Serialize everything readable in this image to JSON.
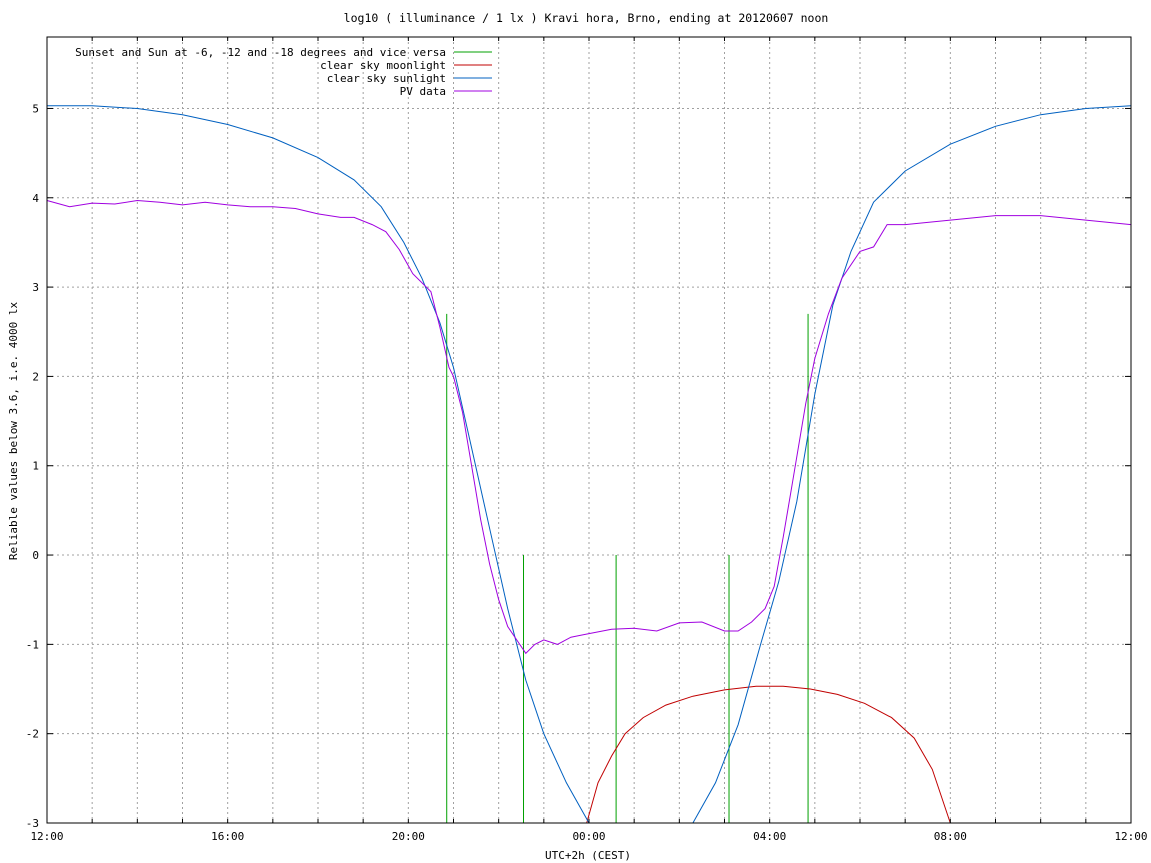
{
  "chart_data": {
    "type": "line",
    "title": "log10 ( illuminance / 1 lx ) Kravi hora, Brno, ending at 20120607 noon",
    "xlabel": "UTC+2h (CEST)",
    "ylabel": "Reliable values below 3.6, i.e. 4000 lx",
    "xlim": [
      0,
      24
    ],
    "ylim": [
      -3,
      5.8
    ],
    "xticks": [
      {
        "x": 0,
        "label": "12:00"
      },
      {
        "x": 4,
        "label": "16:00"
      },
      {
        "x": 8,
        "label": "20:00"
      },
      {
        "x": 12,
        "label": "00:00"
      },
      {
        "x": 16,
        "label": "04:00"
      },
      {
        "x": 20,
        "label": "08:00"
      },
      {
        "x": 24,
        "label": "12:00"
      }
    ],
    "yticks": [
      {
        "y": -3,
        "label": "-3"
      },
      {
        "y": -2,
        "label": "-2"
      },
      {
        "y": -1,
        "label": "-1"
      },
      {
        "y": 0,
        "label": "0"
      },
      {
        "y": 1,
        "label": "1"
      },
      {
        "y": 2,
        "label": "2"
      },
      {
        "y": 3,
        "label": "3"
      },
      {
        "y": 4,
        "label": "4"
      },
      {
        "y": 5,
        "label": "5"
      }
    ],
    "grid": true,
    "legend_position": "top-left",
    "series": [
      {
        "name": "Sunset and Sun at -6, -12 and -18 degrees and vice versa",
        "color": "#00a000",
        "style": "impulses",
        "points": [
          [
            8.85,
            2.7
          ],
          [
            10.55,
            0.0
          ],
          [
            12.6,
            0.0
          ],
          [
            15.1,
            0.0
          ],
          [
            16.85,
            2.7
          ]
        ]
      },
      {
        "name": "clear sky moonlight",
        "color": "#c00000",
        "points": [
          [
            11.95,
            -3.0
          ],
          [
            12.2,
            -2.55
          ],
          [
            12.5,
            -2.25
          ],
          [
            12.8,
            -2.0
          ],
          [
            13.2,
            -1.82
          ],
          [
            13.7,
            -1.68
          ],
          [
            14.3,
            -1.58
          ],
          [
            15.0,
            -1.51
          ],
          [
            15.7,
            -1.47
          ],
          [
            16.3,
            -1.47
          ],
          [
            16.9,
            -1.5
          ],
          [
            17.5,
            -1.56
          ],
          [
            18.1,
            -1.66
          ],
          [
            18.7,
            -1.82
          ],
          [
            19.2,
            -2.05
          ],
          [
            19.6,
            -2.4
          ],
          [
            20.0,
            -3.0
          ]
        ]
      },
      {
        "name": "clear sky sunlight",
        "color": "#0060c0",
        "points": [
          [
            0,
            5.03
          ],
          [
            1,
            5.03
          ],
          [
            2,
            5.0
          ],
          [
            3,
            4.93
          ],
          [
            4,
            4.82
          ],
          [
            5,
            4.67
          ],
          [
            6,
            4.45
          ],
          [
            6.8,
            4.2
          ],
          [
            7.4,
            3.9
          ],
          [
            7.9,
            3.5
          ],
          [
            8.3,
            3.1
          ],
          [
            8.7,
            2.6
          ],
          [
            9.0,
            2.1
          ],
          [
            9.4,
            1.2
          ],
          [
            9.8,
            0.3
          ],
          [
            10.2,
            -0.6
          ],
          [
            10.6,
            -1.4
          ],
          [
            11.0,
            -2.0
          ],
          [
            11.5,
            -2.55
          ],
          [
            12.0,
            -3.0
          ],
          [
            13.5,
            -3.0
          ],
          [
            14.3,
            -3.0
          ],
          [
            14.8,
            -2.55
          ],
          [
            15.3,
            -1.9
          ],
          [
            15.8,
            -1.0
          ],
          [
            16.2,
            -0.3
          ],
          [
            16.6,
            0.6
          ],
          [
            17.0,
            1.8
          ],
          [
            17.4,
            2.8
          ],
          [
            17.8,
            3.4
          ],
          [
            18.3,
            3.95
          ],
          [
            19.0,
            4.3
          ],
          [
            20.0,
            4.6
          ],
          [
            21.0,
            4.8
          ],
          [
            22.0,
            4.93
          ],
          [
            23.0,
            5.0
          ],
          [
            24.0,
            5.03
          ]
        ]
      },
      {
        "name": "PV data",
        "color": "#a000e0",
        "points": [
          [
            0,
            3.97
          ],
          [
            0.5,
            3.9
          ],
          [
            1,
            3.94
          ],
          [
            1.5,
            3.93
          ],
          [
            2,
            3.97
          ],
          [
            2.5,
            3.95
          ],
          [
            3,
            3.92
          ],
          [
            3.5,
            3.95
          ],
          [
            4,
            3.92
          ],
          [
            4.5,
            3.9
          ],
          [
            5,
            3.9
          ],
          [
            5.5,
            3.88
          ],
          [
            6,
            3.82
          ],
          [
            6.5,
            3.78
          ],
          [
            6.8,
            3.78
          ],
          [
            7.2,
            3.7
          ],
          [
            7.5,
            3.62
          ],
          [
            7.8,
            3.42
          ],
          [
            8.1,
            3.15
          ],
          [
            8.5,
            2.95
          ],
          [
            8.7,
            2.55
          ],
          [
            8.9,
            2.1
          ],
          [
            9.0,
            2.0
          ],
          [
            9.2,
            1.6
          ],
          [
            9.4,
            1.0
          ],
          [
            9.6,
            0.4
          ],
          [
            9.8,
            -0.1
          ],
          [
            10.0,
            -0.5
          ],
          [
            10.2,
            -0.8
          ],
          [
            10.4,
            -0.95
          ],
          [
            10.6,
            -1.1
          ],
          [
            10.8,
            -1.0
          ],
          [
            11.0,
            -0.95
          ],
          [
            11.3,
            -1.0
          ],
          [
            11.6,
            -0.92
          ],
          [
            12.0,
            -0.88
          ],
          [
            12.5,
            -0.83
          ],
          [
            13.0,
            -0.82
          ],
          [
            13.5,
            -0.85
          ],
          [
            14.0,
            -0.76
          ],
          [
            14.5,
            -0.75
          ],
          [
            15.0,
            -0.85
          ],
          [
            15.3,
            -0.85
          ],
          [
            15.6,
            -0.75
          ],
          [
            15.9,
            -0.6
          ],
          [
            16.1,
            -0.35
          ],
          [
            16.3,
            0.2
          ],
          [
            16.5,
            0.8
          ],
          [
            16.8,
            1.7
          ],
          [
            17.0,
            2.2
          ],
          [
            17.3,
            2.7
          ],
          [
            17.6,
            3.1
          ],
          [
            18.0,
            3.4
          ],
          [
            18.3,
            3.45
          ],
          [
            18.6,
            3.7
          ],
          [
            19.0,
            3.7
          ],
          [
            20,
            3.75
          ],
          [
            21,
            3.8
          ],
          [
            22,
            3.8
          ],
          [
            23,
            3.75
          ],
          [
            24,
            3.7
          ]
        ]
      }
    ]
  }
}
